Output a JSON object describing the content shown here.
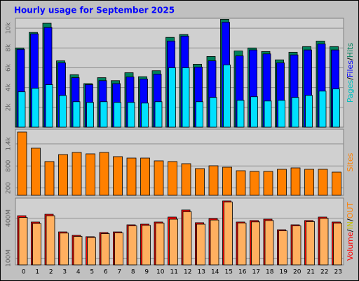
{
  "title": "Hourly usage for September 2025",
  "legend_separator": "/",
  "chart_data": [
    {
      "type": "bar",
      "ylim": [
        0,
        11000
      ],
      "yticks": [
        {
          "value": 2000,
          "label": "2k"
        },
        {
          "value": 4000,
          "label": "4k"
        },
        {
          "value": 6000,
          "label": "6k"
        },
        {
          "value": 8000,
          "label": "8k"
        },
        {
          "value": 10000,
          "label": "10k"
        }
      ],
      "grid": true,
      "legend": [
        {
          "name": "Pages",
          "color": "#00c0c0"
        },
        {
          "name": "Files",
          "color": "#0000ff"
        },
        {
          "name": "Hits",
          "color": "#00805c"
        }
      ],
      "series": [
        {
          "color": "#00805c",
          "values": [
            8000,
            9570,
            10500,
            6700,
            5300,
            4400,
            5000,
            4700,
            5500,
            5100,
            5700,
            9070,
            9360,
            6360,
            7140,
            10900,
            7700,
            8000,
            7640,
            6800,
            7570,
            8140,
            8700,
            8140
          ]
        },
        {
          "color": "#0000ff",
          "values": [
            7860,
            9430,
            10070,
            6500,
            5000,
            4300,
            4700,
            4400,
            5070,
            4860,
            5360,
            8700,
            9200,
            6070,
            6700,
            10600,
            7200,
            7800,
            7400,
            6500,
            7300,
            7800,
            8400,
            7800
          ]
        },
        {
          "color": "#00e0ff",
          "values": [
            3570,
            3930,
            4290,
            3200,
            2570,
            2500,
            2570,
            2500,
            2500,
            2430,
            2570,
            6000,
            6000,
            2570,
            3000,
            6290,
            2710,
            3070,
            2640,
            2710,
            3000,
            3210,
            3640,
            3860
          ]
        }
      ]
    },
    {
      "type": "bar",
      "ylim": [
        0,
        1800
      ],
      "yticks": [
        200,
        800,
        {
          "value": 1400,
          "label": "1.4k"
        }
      ],
      "grid": true,
      "legend": [
        {
          "name": "Sites",
          "color": "#ff8000"
        }
      ],
      "series": [
        {
          "color": "#ff8000",
          "values": [
            1724,
            1284,
            920,
            1111,
            1169,
            1130,
            1169,
            1054,
            1015,
            1015,
            939,
            920,
            862,
            728,
            805,
            766,
            670,
            651,
            651,
            709,
            747,
            709,
            709,
            632
          ]
        }
      ]
    },
    {
      "type": "bar",
      "ylim": [
        50,
        550
      ],
      "yticks": [
        {
          "value": 100,
          "label": "100M"
        },
        {
          "value": 400,
          "label": "400M"
        }
      ],
      "grid": true,
      "categories": [
        "0",
        "1",
        "2",
        "3",
        "4",
        "5",
        "6",
        "7",
        "8",
        "9",
        "10",
        "11",
        "12",
        "13",
        "14",
        "15",
        "16",
        "17",
        "18",
        "19",
        "20",
        "21",
        "22",
        "23"
      ],
      "legend": [
        {
          "name": "Volume",
          "color": "#ff0000"
        },
        {
          "name": "IN",
          "color": "#c0c000"
        },
        {
          "name": "OUT",
          "color": "#ff8000"
        }
      ],
      "series": [
        {
          "color": "#ff0000",
          "values": [
            418,
            371,
            429,
            297,
            271,
            261,
            292,
            297,
            350,
            355,
            371,
            408,
            461,
            366,
            397,
            529,
            371,
            382,
            392,
            313,
            350,
            382,
            408,
            371
          ]
        },
        {
          "color": "#ffb060",
          "values": [
            405,
            360,
            418,
            288,
            263,
            255,
            284,
            290,
            342,
            346,
            362,
            392,
            448,
            355,
            386,
            520,
            363,
            372,
            382,
            305,
            342,
            374,
            398,
            362
          ]
        }
      ]
    }
  ]
}
